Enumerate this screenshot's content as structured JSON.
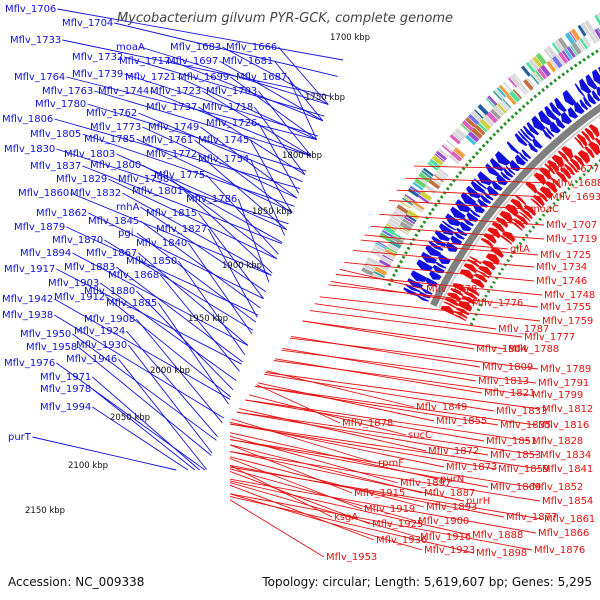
{
  "title": "Mycobacterium gilvum PYR-GCK, complete genome",
  "footer": {
    "accession": "Accession: NC_009338",
    "topology": "Topology: circular; Length: 5,619,607 bp; Genes: 5,295"
  },
  "colors": {
    "forward": "#1010e0",
    "reverse": "#e81010",
    "backbone": "#808080",
    "tick_marks": "#1a8f1a",
    "cog_palette": [
      "#3aa0a0",
      "#9a4fd0",
      "#6ad46a",
      "#f0a040",
      "#e060c0",
      "#a0a0a0",
      "#40c0e0",
      "#d0d040",
      "#7070f0",
      "#50e0a0",
      "#c07040",
      "#2060a0"
    ]
  },
  "kbp_ticks": [
    "1700 kbp",
    "1750 kbp",
    "1800 kbp",
    "1850 kbp",
    "1900 kbp",
    "1950 kbp",
    "2000 kbp",
    "2050 kbp",
    "2100 kbp",
    "2150 kbp"
  ],
  "forward_labels": [
    "Mflv_1706",
    "Mflv_1704",
    "Mflv_1733",
    "Mflv_1732",
    "moaA",
    "Mflv_1683",
    "Mflv_1666",
    "Mflv_1717",
    "Mflv_1697",
    "Mflv_1681",
    "Mflv_1764",
    "Mflv_1739",
    "Mflv_1721",
    "Mflv_1699",
    "Mflv_1687",
    "Mflv_1763",
    "Mflv_1744",
    "Mflv_1723",
    "Mflv_1703",
    "Mflv_1780",
    "Mflv_1762",
    "Mflv_1737",
    "Mflv_1718",
    "Mflv_1806",
    "Mflv_1773",
    "Mflv_1749",
    "Mflv_1726",
    "Mflv_1805",
    "Mflv_1785",
    "Mflv_1761",
    "Mflv_1745",
    "Mflv_1830",
    "Mflv_1803",
    "Mflv_1772",
    "Mflv_1754",
    "Mflv_1837",
    "Mflv_1800",
    "Mflv_1775",
    "Mflv_1829",
    "Mflv_1798",
    "Mflv_1860",
    "Mflv_1832",
    "Mflv_1801",
    "Mflv_1786",
    "rnhA",
    "Mflv_1815",
    "Mflv_1862",
    "Mflv_1845",
    "Mflv_1879",
    "Mflv_1827",
    "pgi",
    "Mflv_1870",
    "Mflv_1840",
    "Mflv_1894",
    "Mflv_1867",
    "Mflv_1850",
    "Mflv_1917",
    "Mflv_1883",
    "Mflv_1868",
    "Mflv_1903",
    "Mflv_1942",
    "Mflv_1912",
    "Mflv_1880",
    "Mflv_1885",
    "Mflv_1938",
    "Mflv_1908",
    "Mflv_1924",
    "Mflv_1950",
    "Mflv_1930",
    "Mflv_1958",
    "Mflv_1946",
    "Mflv_1976",
    "Mflv_1971",
    "Mflv_1978",
    "Mflv_1994",
    "purT"
  ],
  "reverse_labels": [
    "Mflv_1677",
    "Mflv_1688",
    "Mflv_1693",
    "moaC",
    "Mflv_1707",
    "Mflv_1719",
    "gltA",
    "Mflv_1725",
    "Mflv_1734",
    "Mflv_1746",
    "Mflv_1748",
    "Mflv_1778",
    "Mflv_1755",
    "Mflv_1776",
    "Mflv_1759",
    "Mflv_1787",
    "Mflv_1777",
    "Mflv_1804",
    "Mflv_1788",
    "Mflv_1809",
    "Mflv_1789",
    "Mflv_1813",
    "Mflv_1791",
    "Mflv_1821",
    "Mflv_1799",
    "Mflv_1849",
    "Mflv_1833",
    "Mflv_1812",
    "Mflv_1855",
    "Mflv_1878",
    "Mflv_1835",
    "Mflv_1816",
    "sucC",
    "Mflv_1851",
    "Mflv_1828",
    "Mflv_1872",
    "Mflv_1853",
    "Mflv_1834",
    "rpmF",
    "Mflv_1873",
    "Mflv_1859",
    "Mflv_1841",
    "purN",
    "Mflv_1897",
    "Mflv_1869",
    "Mflv_1852",
    "Mflv_1915",
    "Mflv_1887",
    "purH",
    "Mflv_1854",
    "Mflv_1919",
    "Mflv_1893",
    "Mflv_1877",
    "Mflv_1861",
    "ksgA",
    "Mflv_1925",
    "Mflv_1900",
    "Mflv_1866",
    "Mflv_1936",
    "Mflv_1916",
    "Mflv_1888",
    "Mflv_1953",
    "Mflv_1923",
    "Mflv_1898",
    "Mflv_1876"
  ]
}
